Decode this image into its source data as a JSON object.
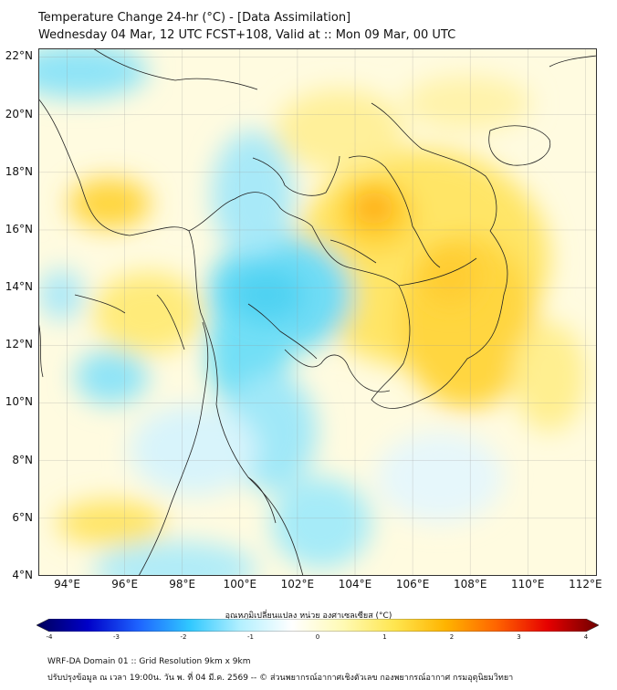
{
  "header": {
    "line1": "Temperature Change 24-hr (°C) - [Data Assimilation]",
    "line2": "Wednesday 04 Mar, 12 UTC FCST+108, Valid at :: Mon 09 Mar, 00 UTC"
  },
  "map": {
    "lat_labels": [
      "22°N",
      "20°N",
      "18°N",
      "16°N",
      "14°N",
      "12°N",
      "10°N",
      "8°N",
      "6°N",
      "4°N"
    ],
    "lat_values": [
      22,
      20,
      18,
      16,
      14,
      12,
      10,
      8,
      6,
      4
    ],
    "lon_labels": [
      "94°E",
      "96°E",
      "98°E",
      "100°E",
      "102°E",
      "104°E",
      "106°E",
      "108°E",
      "110°E",
      "112°E"
    ],
    "lon_values": [
      94,
      96,
      98,
      100,
      102,
      104,
      106,
      108,
      110,
      112
    ],
    "lat_range": [
      4,
      22.3
    ],
    "lon_range": [
      93,
      112.4
    ]
  },
  "colorbar": {
    "title": "อุณหภูมิเปลี่ยนแปลง หน่วย องศาเซลเซียส (°C)",
    "ticks": [
      "-4",
      "-3",
      "-2",
      "-1",
      "0",
      "1",
      "2",
      "3",
      "4"
    ],
    "range": [
      -4,
      4
    ],
    "colors": [
      "#00005a",
      "#0000c8",
      "#1e64ff",
      "#30c8ff",
      "#b4f0ff",
      "#ffffff",
      "#fffab4",
      "#ffe650",
      "#ffb400",
      "#ff6400",
      "#e60000",
      "#6e0000"
    ]
  },
  "footer": {
    "line1": "WRF-DA Domain 01 :: Grid Resolution 9km x 9km",
    "line2": "ปรับปรุงข้อมูล ณ เวลา 19:00น. วัน พ. ที่ 04 มี.ค. 2569 -- © ส่วนพยากรณ์อากาศเชิงตัวเลข กองพยากรณ์อากาศ กรมอุตุนิยมวิทยา"
  }
}
